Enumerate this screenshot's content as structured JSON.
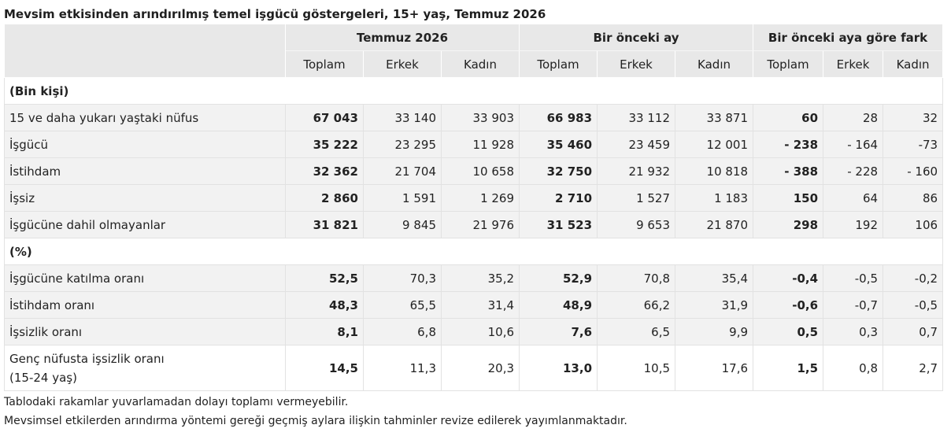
{
  "title": "Mevsim etkisinden arındırılmış temel işgücü göstergeleri, 15+ yaş, Temmuz 2026",
  "groups": [
    "Temmuz 2026",
    "Bir önceki ay",
    "Bir önceki aya göre fark"
  ],
  "subheaders": [
    "Toplam",
    "Erkek",
    "Kadın"
  ],
  "section_bin": "(Bin kişi)",
  "section_pct": "(%)",
  "rows_bin": [
    {
      "label": "15 ve daha yukarı yaştaki nüfus",
      "v": [
        "67 043",
        "33 140",
        "33 903",
        "66 983",
        "33 112",
        "33 871",
        "60",
        "28",
        "32"
      ]
    },
    {
      "label": "İşgücü",
      "v": [
        "35 222",
        "23 295",
        "11 928",
        "35 460",
        "23 459",
        "12 001",
        "- 238",
        "- 164",
        "-73"
      ]
    },
    {
      "label": "İstihdam",
      "v": [
        "32 362",
        "21 704",
        "10 658",
        "32 750",
        "21 932",
        "10 818",
        "- 388",
        "- 228",
        "- 160"
      ]
    },
    {
      "label": "İşsiz",
      "v": [
        "2 860",
        "1 591",
        "1 269",
        "2 710",
        "1 527",
        "1 183",
        "150",
        "64",
        "86"
      ]
    },
    {
      "label": "İşgücüne dahil olmayanlar",
      "v": [
        "31 821",
        "9 845",
        "21 976",
        "31 523",
        "9 653",
        "21 870",
        "298",
        "192",
        "106"
      ]
    }
  ],
  "rows_pct": [
    {
      "label": "İşgücüne katılma oranı",
      "v": [
        "52,5",
        "70,3",
        "35,2",
        "52,9",
        "70,8",
        "35,4",
        "-0,4",
        "-0,5",
        "-0,2"
      ]
    },
    {
      "label": "İstihdam oranı",
      "v": [
        "48,3",
        "65,5",
        "31,4",
        "48,9",
        "66,2",
        "31,9",
        "-0,6",
        "-0,7",
        "-0,5"
      ]
    },
    {
      "label": "İşsizlik oranı",
      "v": [
        "8,1",
        "6,8",
        "10,6",
        "7,6",
        "6,5",
        "9,9",
        "0,5",
        "0,3",
        "0,7"
      ]
    }
  ],
  "row_youth": {
    "label_line1": "Genç nüfusta işsizlik oranı",
    "label_line2": "(15-24 yaş)",
    "v": [
      "14,5",
      "11,3",
      "20,3",
      "13,0",
      "10,5",
      "17,6",
      "1,5",
      "0,8",
      "2,7"
    ]
  },
  "notes": [
    "Tablodaki rakamlar yuvarlamadan dolayı toplamı vermeyebilir.",
    "Mevsimsel etkilerden arındırma yöntemi gereği geçmiş aylara ilişkin tahminler revize edilerek yayımlanmaktadır."
  ]
}
